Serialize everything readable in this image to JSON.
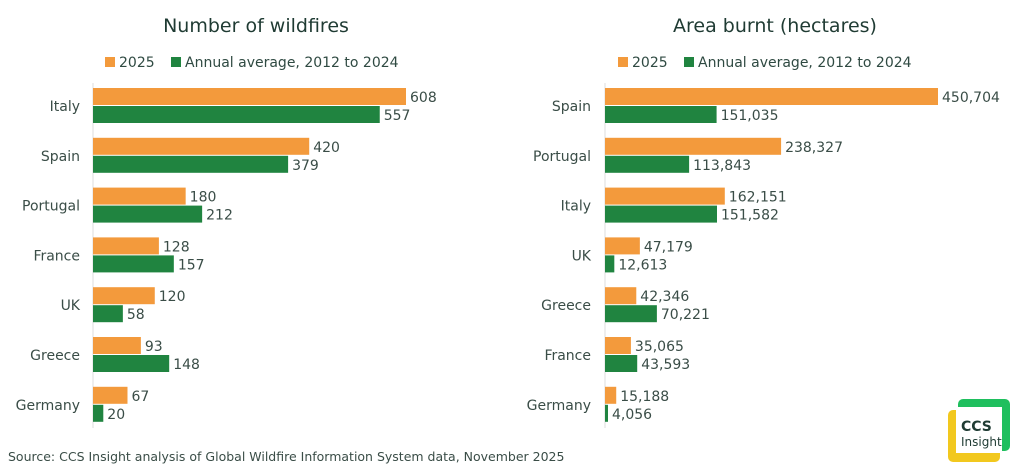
{
  "colors": {
    "series_2025": "#f39a3c",
    "series_avg": "#208440"
  },
  "chart_data": [
    {
      "type": "bar",
      "orientation": "horizontal",
      "title": "Number of wildfires",
      "legend": [
        "2025",
        "Annual average, 2012 to 2024"
      ],
      "legend_position": "top",
      "categories": [
        "Italy",
        "Spain",
        "Portugal",
        "France",
        "UK",
        "Greece",
        "Germany"
      ],
      "series": [
        {
          "name": "2025",
          "values": [
            608,
            420,
            180,
            128,
            120,
            93,
            67
          ],
          "labels": [
            "608",
            "420",
            "180",
            "128",
            "120",
            "93",
            "67"
          ]
        },
        {
          "name": "Annual average, 2012 to 2024",
          "values": [
            557,
            379,
            212,
            157,
            58,
            148,
            20
          ],
          "labels": [
            "557",
            "379",
            "212",
            "157",
            "58",
            "148",
            "20"
          ]
        }
      ],
      "xlim": [
        0,
        608
      ]
    },
    {
      "type": "bar",
      "orientation": "horizontal",
      "title": "Area burnt (hectares)",
      "legend": [
        "2025",
        "Annual average, 2012 to 2024"
      ],
      "legend_position": "top",
      "categories": [
        "Spain",
        "Portugal",
        "Italy",
        "UK",
        "Greece",
        "France",
        "Germany"
      ],
      "series": [
        {
          "name": "2025",
          "values": [
            450704,
            238327,
            162151,
            47179,
            42346,
            35065,
            15188
          ],
          "labels": [
            "450,704",
            "238,327",
            "162,151",
            "47,179",
            "42,346",
            "35,065",
            "15,188"
          ]
        },
        {
          "name": "Annual average, 2012 to 2024",
          "values": [
            151035,
            113843,
            151582,
            12613,
            70221,
            43593,
            4056
          ],
          "labels": [
            "151,035",
            "113,843",
            "151,582",
            "12,613",
            "70,221",
            "43,593",
            "4,056"
          ]
        }
      ],
      "xlim": [
        0,
        450704
      ]
    }
  ],
  "source": "Source: CCS Insight analysis of Global Wildfire Information System data, November 2025",
  "logo": {
    "line1": "CCS",
    "line2": "Insight"
  }
}
